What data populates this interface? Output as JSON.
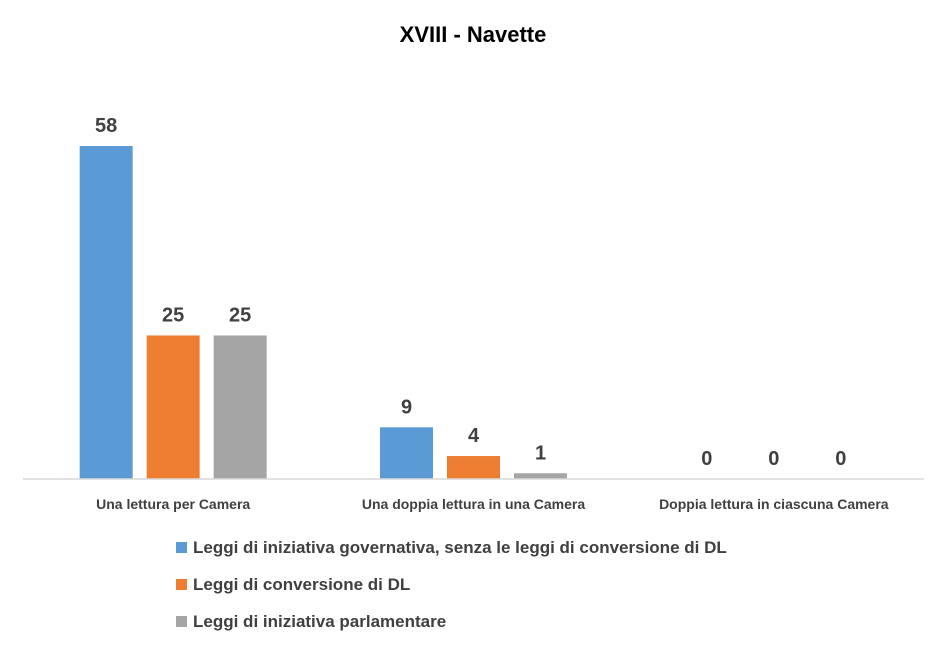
{
  "chart_data": {
    "type": "bar",
    "title": "XVIII - Navette",
    "categories": [
      "Una lettura per Camera",
      "Una doppia lettura in una Camera",
      "Doppia lettura in ciascuna Camera"
    ],
    "series": [
      {
        "name": "Leggi di iniziativa governativa, senza le leggi di conversione di DL",
        "values": [
          58,
          9,
          0
        ],
        "color": "#5B9BD5"
      },
      {
        "name": "Leggi di conversione di DL",
        "values": [
          25,
          4,
          0
        ],
        "color": "#ED7D31"
      },
      {
        "name": "Leggi di iniziativa parlamentare",
        "values": [
          25,
          1,
          0
        ],
        "color": "#A5A5A5"
      }
    ],
    "ylim": [
      0,
      58
    ],
    "data_labels": true,
    "grid": false,
    "legend_position": "bottom"
  }
}
